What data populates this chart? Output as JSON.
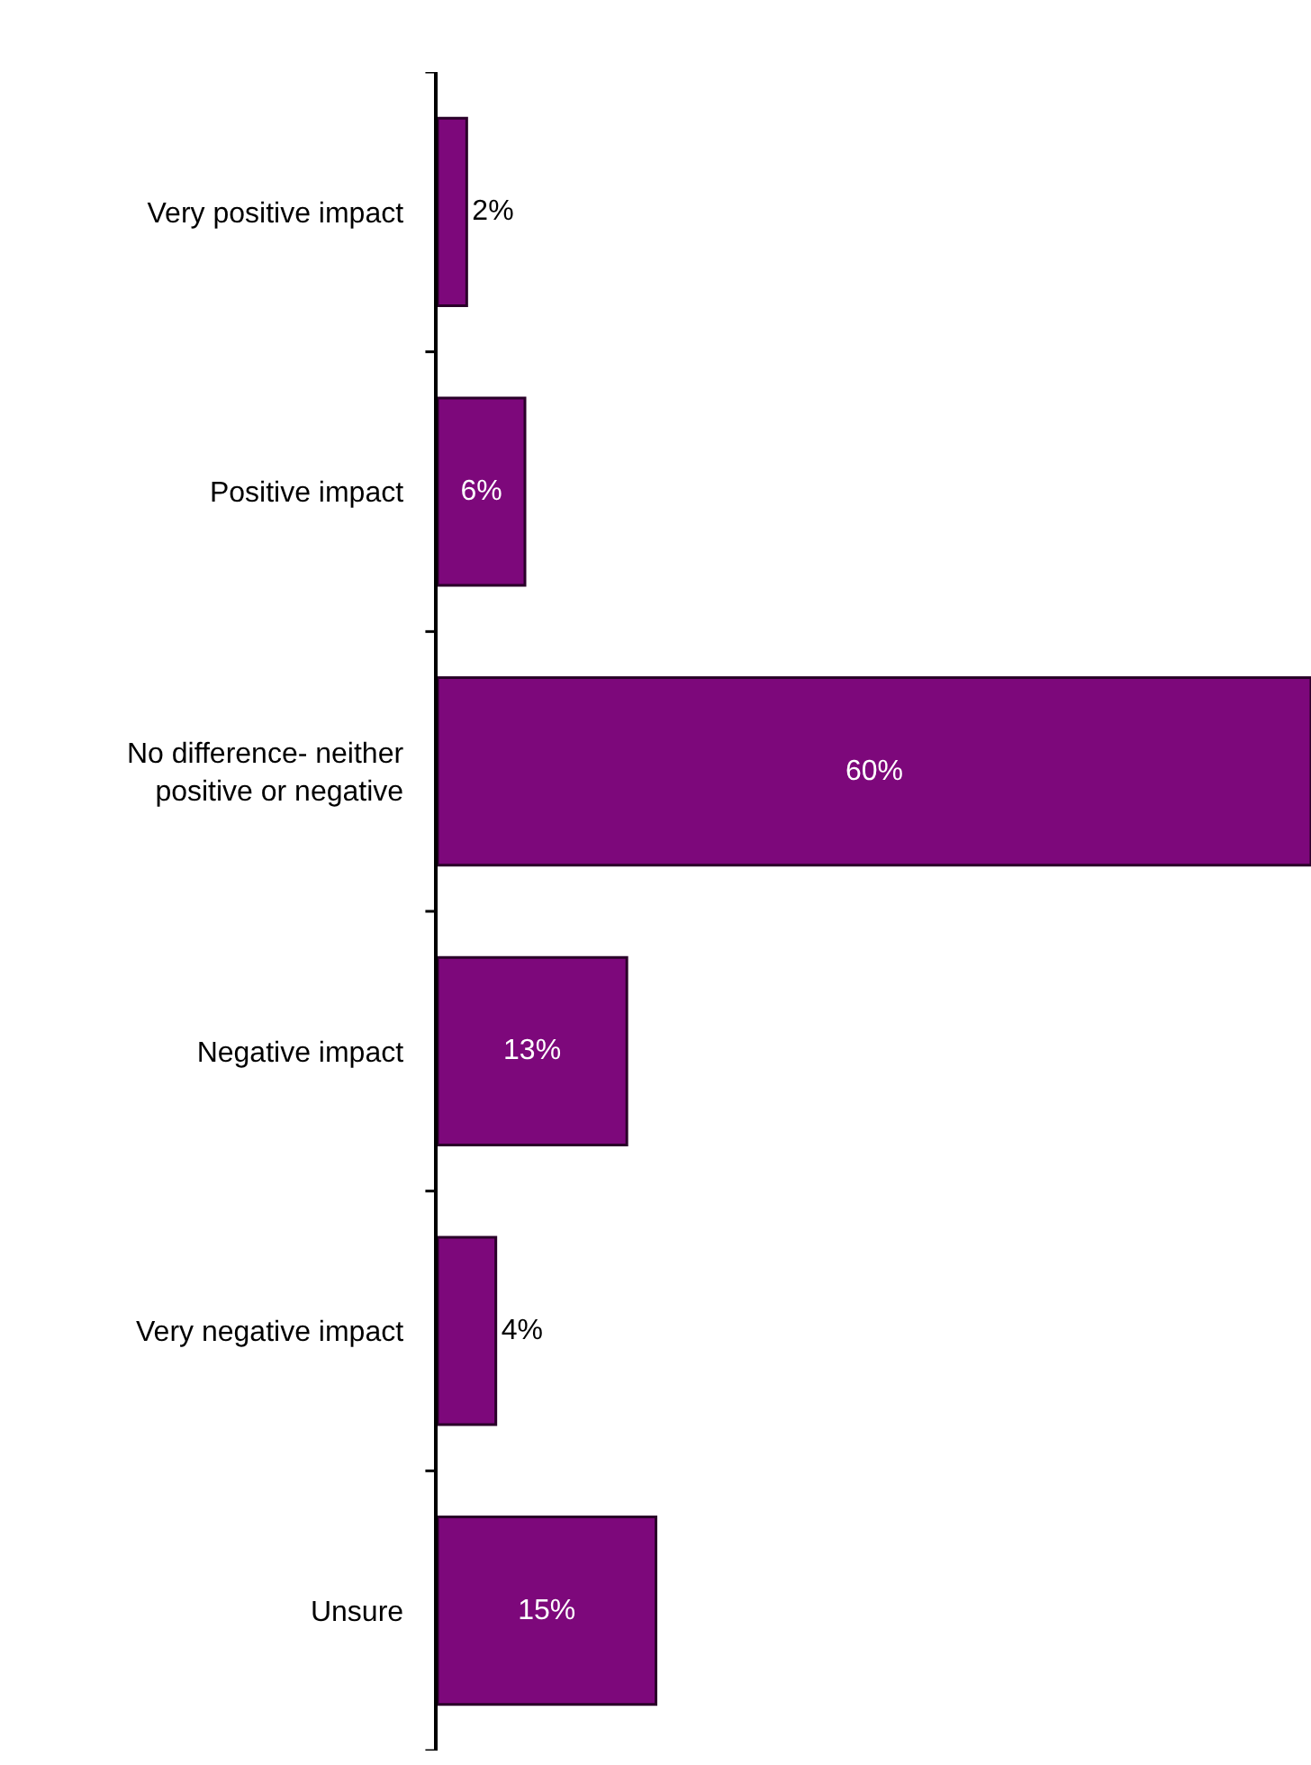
{
  "chart_data": {
    "type": "bar",
    "orientation": "horizontal",
    "categories": [
      "Very positive impact",
      "Positive impact",
      "No difference- neither positive or negative",
      "Negative impact",
      "Very negative impact",
      "Unsure"
    ],
    "values": [
      2,
      6,
      60,
      13,
      4,
      15
    ],
    "value_labels": [
      "2%",
      "6%",
      "60%",
      "13%",
      "4%",
      "15%"
    ],
    "color": "#7d087b",
    "xlim": [
      0,
      60
    ]
  }
}
